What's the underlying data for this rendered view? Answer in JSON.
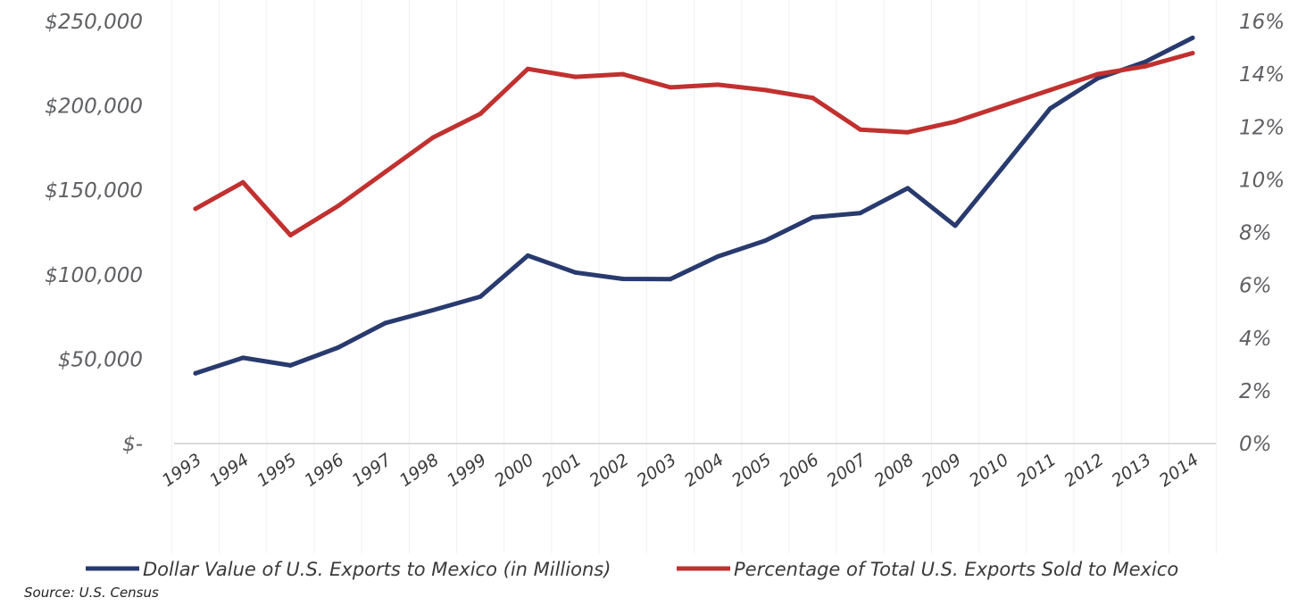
{
  "chart_data": {
    "type": "line",
    "categories": [
      "1993",
      "1994",
      "1995",
      "1996",
      "1997",
      "1998",
      "1999",
      "2000",
      "2001",
      "2002",
      "2003",
      "2004",
      "2005",
      "2006",
      "2007",
      "2008",
      "2009",
      "2010",
      "2011",
      "2012",
      "2013",
      "2014"
    ],
    "series": [
      {
        "name": "Dollar Value of U.S. Exports to Mexico (in Millions)",
        "axis": "left",
        "color": "#283a6e",
        "values": [
          41600,
          50800,
          46300,
          56800,
          71400,
          79000,
          87000,
          111300,
          101300,
          97500,
          97400,
          110800,
          120200,
          134000,
          136500,
          151200,
          129000,
          163500,
          198400,
          216300,
          226000,
          240300
        ]
      },
      {
        "name": "Percentage of Total U.S. Exports Sold to Mexico",
        "axis": "right",
        "color": "#c0312f",
        "values": [
          8.9,
          9.9,
          7.9,
          9.0,
          10.3,
          11.6,
          12.5,
          14.2,
          13.9,
          14.0,
          13.5,
          13.6,
          13.4,
          13.1,
          11.9,
          11.8,
          12.2,
          12.8,
          13.4,
          14.0,
          14.3,
          14.8
        ]
      }
    ],
    "y_left": {
      "ylim": [
        0,
        250000
      ],
      "ticks": [
        0,
        50000,
        100000,
        150000,
        200000,
        250000
      ],
      "tick_labels": [
        "$-",
        "$50,000",
        "$100,000",
        "$150,000",
        "$200,000",
        "$250,000"
      ]
    },
    "y_right": {
      "ylim": [
        0,
        16
      ],
      "ticks": [
        0,
        2,
        4,
        6,
        8,
        10,
        12,
        14,
        16
      ],
      "tick_labels": [
        "0%",
        "2%",
        "4%",
        "6%",
        "8%",
        "10%",
        "12%",
        "14%",
        "16%"
      ]
    },
    "legend_position": "bottom",
    "grid": true,
    "source": "Source: U.S. Census"
  }
}
